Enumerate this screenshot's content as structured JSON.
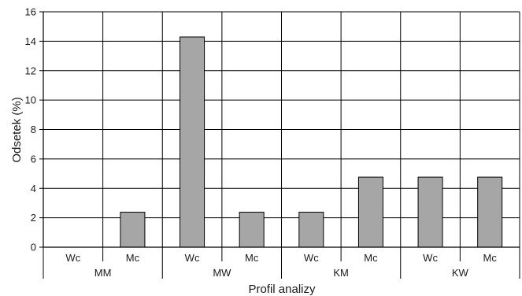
{
  "chart_data": {
    "type": "bar",
    "title": "",
    "xlabel": "Profil analizy",
    "ylabel": "Odsetek (%)",
    "ylim": [
      0,
      16
    ],
    "yticks": [
      0,
      2,
      4,
      6,
      8,
      10,
      12,
      14,
      16
    ],
    "grid": true,
    "groups": [
      "MM",
      "MW",
      "KM",
      "KW"
    ],
    "categories": [
      "Wc",
      "Mc",
      "Wc",
      "Mc",
      "Wc",
      "Mc",
      "Wc",
      "Mc"
    ],
    "values": [
      0,
      2.38,
      14.29,
      2.38,
      2.38,
      4.76,
      4.76,
      4.76
    ],
    "bar_color": "#a6a6a6",
    "bar_stroke": "#000000"
  }
}
